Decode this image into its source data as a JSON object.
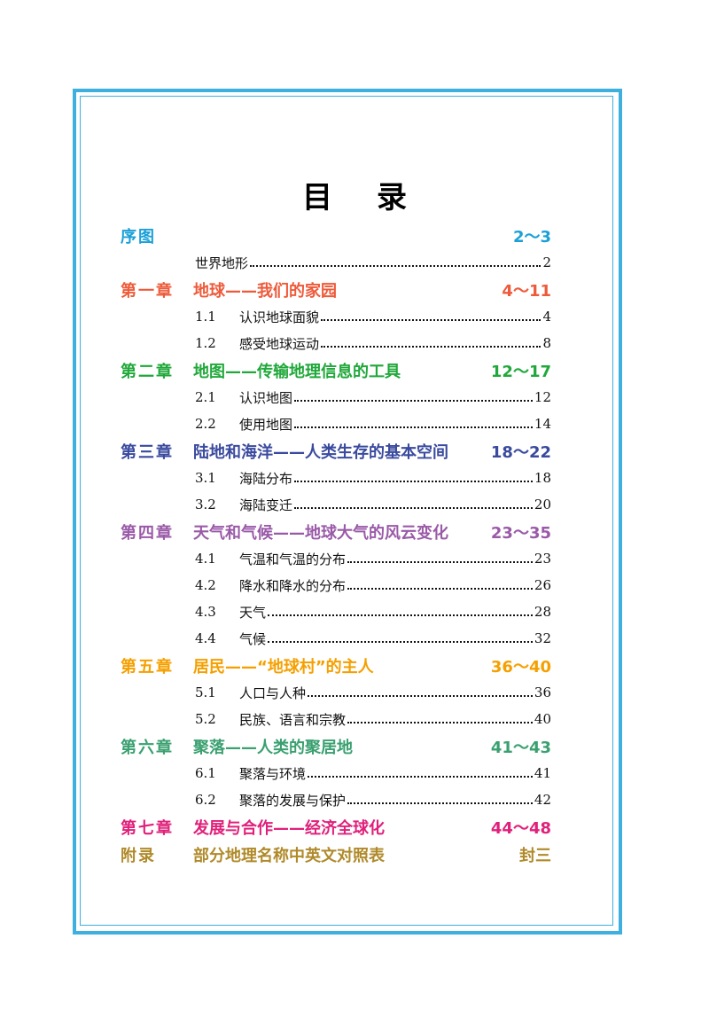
{
  "title": "目录",
  "sections": [
    {
      "label": "序图",
      "title": null,
      "pages": "2～3",
      "color": "#1aa0d8",
      "items": [
        {
          "number": null,
          "title": "世界地形",
          "page": "2"
        }
      ]
    },
    {
      "label": "第一章",
      "title": "地球——我们的家园",
      "pages": "4～11",
      "color": "#ee5a3a",
      "items": [
        {
          "number": "1.1",
          "title": "认识地球面貌",
          "page": "4"
        },
        {
          "number": "1.2",
          "title": "感受地球运动",
          "page": "8"
        }
      ]
    },
    {
      "label": "第二章",
      "title": "地图——传输地理信息的工具",
      "pages": "12～17",
      "color": "#20a83a",
      "items": [
        {
          "number": "2.1",
          "title": "认识地图",
          "page": "12"
        },
        {
          "number": "2.2",
          "title": "使用地图",
          "page": "14"
        }
      ]
    },
    {
      "label": "第三章",
      "title": "陆地和海洋——人类生存的基本空间",
      "pages": "18～22",
      "color": "#3a4a9e",
      "items": [
        {
          "number": "3.1",
          "title": "海陆分布",
          "page": "18"
        },
        {
          "number": "3.2",
          "title": "海陆变迁",
          "page": "20"
        }
      ]
    },
    {
      "label": "第四章",
      "title": "天气和气候——地球大气的风云变化",
      "pages": "23～35",
      "color": "#9a5aa8",
      "items": [
        {
          "number": "4.1",
          "title": "气温和气温的分布",
          "page": "23"
        },
        {
          "number": "4.2",
          "title": "降水和降水的分布",
          "page": "26"
        },
        {
          "number": "4.3",
          "title": "天气",
          "page": "28"
        },
        {
          "number": "4.4",
          "title": "气候",
          "page": "32"
        }
      ]
    },
    {
      "label": "第五章",
      "title": "居民——“地球村”的主人",
      "pages": "36～40",
      "color": "#f5a000",
      "items": [
        {
          "number": "5.1",
          "title": "人口与人种",
          "page": "36"
        },
        {
          "number": "5.2",
          "title": "民族、语言和宗教",
          "page": "40"
        }
      ]
    },
    {
      "label": "第六章",
      "title": "聚落——人类的聚居地",
      "pages": "41～43",
      "color": "#3aa070",
      "items": [
        {
          "number": "6.1",
          "title": "聚落与环境",
          "page": "41"
        },
        {
          "number": "6.2",
          "title": "聚落的发展与保护",
          "page": "42"
        }
      ]
    },
    {
      "label": "第七章",
      "title": "发展与合作——经济全球化",
      "pages": "44～48",
      "color": "#e0207a",
      "items": []
    },
    {
      "label": "附录",
      "title": "部分地理名称中英文对照表",
      "pages": "封三",
      "color": "#b08a2a",
      "items": []
    }
  ]
}
